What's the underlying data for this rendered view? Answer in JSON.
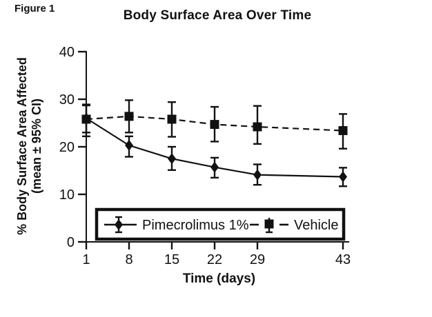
{
  "figure_label": "Figure 1",
  "chart_data": {
    "type": "line",
    "title": "Body Surface Area Over Time",
    "xlabel": "Time (days)",
    "ylabel_line1": "% Body Surface Area Affected",
    "ylabel_line2": "(mean ± 95% CI)",
    "x": [
      1,
      8,
      15,
      22,
      29,
      43
    ],
    "yticks": [
      0,
      10,
      20,
      30,
      40
    ],
    "xlim": [
      1,
      44
    ],
    "ylim": [
      0,
      40
    ],
    "grid": false,
    "legend_position": "inside-bottom",
    "color": "#111111",
    "background": "#ffffff",
    "series": [
      {
        "name": "Pimecrolimus 1%",
        "marker": "diamond",
        "line_style": "solid",
        "values": [
          26.0,
          20.3,
          17.5,
          15.7,
          14.1,
          13.7
        ],
        "ci_low": [
          22.2,
          17.9,
          15.1,
          13.5,
          12.0,
          11.7
        ],
        "ci_high": [
          28.9,
          22.2,
          20.0,
          17.7,
          16.3,
          15.6
        ]
      },
      {
        "name": "Vehicle",
        "marker": "square",
        "line_style": "dashed",
        "values": [
          25.8,
          26.4,
          25.8,
          24.7,
          24.2,
          23.4
        ],
        "ci_low": [
          23.0,
          23.0,
          22.1,
          21.1,
          20.6,
          19.6
        ],
        "ci_high": [
          28.7,
          29.8,
          29.4,
          28.4,
          28.6,
          26.9
        ]
      }
    ]
  }
}
